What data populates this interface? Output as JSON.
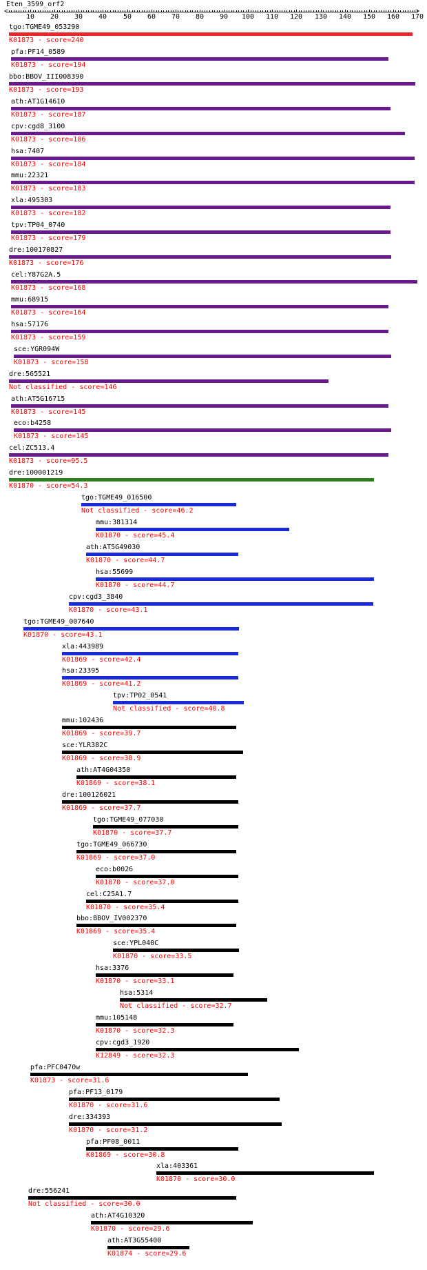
{
  "query": "Eten_3599_orf2",
  "axis": {
    "min": 0,
    "max": 170,
    "tick_labels": [
      "10",
      "20",
      "30",
      "40",
      "50",
      "60",
      "70",
      "80",
      "90",
      "100",
      "110",
      "120",
      "130",
      "140",
      "150",
      "160",
      "170"
    ]
  },
  "colors": {
    "red": "#e8262b",
    "purple": "#6a1a8f",
    "green": "#2e7d1f",
    "blue": "#1b2ad8",
    "black": "#000000"
  },
  "hits": [
    {
      "gene": "tgo:TGME49_053290",
      "label": "K01873 - score=240",
      "start": 1,
      "end": 168,
      "color": "red"
    },
    {
      "gene": "pfa:PF14_0589",
      "label": "K01873 - score=194",
      "start": 2,
      "end": 158,
      "color": "purple"
    },
    {
      "gene": "bbo:BBOV_III008390",
      "label": "K01873 - score=193",
      "start": 1,
      "end": 169,
      "color": "purple"
    },
    {
      "gene": "ath:AT1G14610",
      "label": "K01873 - score=187",
      "start": 2,
      "end": 159,
      "color": "purple"
    },
    {
      "gene": "cpv:cgd8_3100",
      "label": "K01873 - score=186",
      "start": 2,
      "end": 165,
      "color": "purple"
    },
    {
      "gene": "hsa:7407",
      "label": "K01873 - score=184",
      "start": 2,
      "end": 169,
      "color": "purple"
    },
    {
      "gene": "mmu:22321",
      "label": "K01873 - score=183",
      "start": 2,
      "end": 169,
      "color": "purple"
    },
    {
      "gene": "xla:495303",
      "label": "K01873 - score=182",
      "start": 2,
      "end": 159,
      "color": "purple"
    },
    {
      "gene": "tpv:TP04_0740",
      "label": "K01873 - score=179",
      "start": 2,
      "end": 159,
      "color": "purple"
    },
    {
      "gene": "dre:100170827",
      "label": "K01873 - score=176",
      "start": 1,
      "end": 159,
      "color": "purple"
    },
    {
      "gene": "cel:Y87G2A.5",
      "label": "K01873 - score=168",
      "start": 2,
      "end": 170,
      "color": "purple"
    },
    {
      "gene": "mmu:68915",
      "label": "K01873 - score=164",
      "start": 2,
      "end": 158,
      "color": "purple"
    },
    {
      "gene": "hsa:57176",
      "label": "K01873 - score=159",
      "start": 2,
      "end": 158,
      "color": "purple"
    },
    {
      "gene": "sce:YGR094W",
      "label": "K01873 - score=158",
      "start": 3,
      "end": 159,
      "color": "purple"
    },
    {
      "gene": "dre:565521",
      "label": "Not classified - score=146",
      "start": 1,
      "end": 133,
      "color": "purple"
    },
    {
      "gene": "ath:AT5G16715",
      "label": "K01873 - score=145",
      "start": 2,
      "end": 158,
      "color": "purple"
    },
    {
      "gene": "eco:b4258",
      "label": "K01873 - score=145",
      "start": 3,
      "end": 159,
      "color": "purple"
    },
    {
      "gene": "cel:ZC513.4",
      "label": "K01873 - score=95.5",
      "start": 1,
      "end": 158,
      "color": "purple"
    },
    {
      "gene": "dre:100001219",
      "label": "K01870 - score=54.3",
      "start": 1,
      "end": 152,
      "color": "green"
    },
    {
      "gene": "tgo:TGME49_016500",
      "label": "Not classified - score=46.2",
      "start": 31,
      "end": 95,
      "color": "blue"
    },
    {
      "gene": "mmu:381314",
      "label": "K01870 - score=45.4",
      "start": 37,
      "end": 117,
      "color": "blue"
    },
    {
      "gene": "ath:AT5G49030",
      "label": "K01870 - score=44.7",
      "start": 33,
      "end": 96,
      "color": "blue"
    },
    {
      "gene": "hsa:55699",
      "label": "K01870 - score=44.7",
      "start": 37,
      "end": 152,
      "color": "blue"
    },
    {
      "gene": "cpv:cgd3_3840",
      "label": "K01870 - score=43.1",
      "start": 26,
      "end": 152,
      "color": "blue"
    },
    {
      "gene": "tgo:TGME49_007640",
      "label": "K01870 - score=43.1",
      "start": 7,
      "end": 96,
      "color": "blue"
    },
    {
      "gene": "xla:443989",
      "label": "K01869 - score=42.4",
      "start": 23,
      "end": 96,
      "color": "blue"
    },
    {
      "gene": "hsa:23395",
      "label": "K01869 - score=41.2",
      "start": 23,
      "end": 96,
      "color": "blue"
    },
    {
      "gene": "tpv:TP02_0541",
      "label": "Not classified - score=40.8",
      "start": 44,
      "end": 98,
      "color": "blue"
    },
    {
      "gene": "mmu:102436",
      "label": "K01869 - score=39.7",
      "start": 23,
      "end": 95,
      "color": "black"
    },
    {
      "gene": "sce:YLR382C",
      "label": "K01869 - score=38.9",
      "start": 23,
      "end": 98,
      "color": "black"
    },
    {
      "gene": "ath:AT4G04350",
      "label": "K01869 - score=38.1",
      "start": 29,
      "end": 95,
      "color": "black"
    },
    {
      "gene": "dre:100126021",
      "label": "K01869 - score=37.7",
      "start": 23,
      "end": 96,
      "color": "black"
    },
    {
      "gene": "tgo:TGME49_077030",
      "label": "K01870 - score=37.7",
      "start": 36,
      "end": 96,
      "color": "black"
    },
    {
      "gene": "tgo:TGME49_066730",
      "label": "K01869 - score=37.0",
      "start": 29,
      "end": 95,
      "color": "black"
    },
    {
      "gene": "eco:b0026",
      "label": "K01870 - score=37.0",
      "start": 37,
      "end": 96,
      "color": "black"
    },
    {
      "gene": "cel:C25A1.7",
      "label": "K01870 - score=35.4",
      "start": 33,
      "end": 96,
      "color": "black"
    },
    {
      "gene": "bbo:BBOV_IV002370",
      "label": "K01869 - score=35.4",
      "start": 29,
      "end": 95,
      "color": "black"
    },
    {
      "gene": "sce:YPL040C",
      "label": "K01870 - score=33.5",
      "start": 44,
      "end": 96,
      "color": "black"
    },
    {
      "gene": "hsa:3376",
      "label": "K01870 - score=33.1",
      "start": 37,
      "end": 94,
      "color": "black"
    },
    {
      "gene": "hsa:5314",
      "label": "Not classified - score=32.7",
      "start": 47,
      "end": 108,
      "color": "black"
    },
    {
      "gene": "mmu:105148",
      "label": "K01870 - score=32.3",
      "start": 37,
      "end": 94,
      "color": "black"
    },
    {
      "gene": "cpv:cgd3_1920",
      "label": "K12849 - score=32.3",
      "start": 37,
      "end": 121,
      "color": "black"
    },
    {
      "gene": "pfa:PFC0470w",
      "label": "K01873 - score=31.6",
      "start": 10,
      "end": 100,
      "color": "black"
    },
    {
      "gene": "pfa:PF13_0179",
      "label": "K01870 - score=31.6",
      "start": 26,
      "end": 113,
      "color": "black"
    },
    {
      "gene": "dre:334393",
      "label": "K01870 - score=31.2",
      "start": 26,
      "end": 114,
      "color": "black"
    },
    {
      "gene": "pfa:PF08_0011",
      "label": "K01869 - score=30.8",
      "start": 33,
      "end": 96,
      "color": "black"
    },
    {
      "gene": "xla:403361",
      "label": "K01870 - score=30.0",
      "start": 62,
      "end": 152,
      "color": "black"
    },
    {
      "gene": "dre:556241",
      "label": "Not classified - score=30.0",
      "start": 9,
      "end": 95,
      "color": "black"
    },
    {
      "gene": "ath:AT4G10320",
      "label": "K01870 - score=29.6",
      "start": 35,
      "end": 102,
      "color": "black"
    },
    {
      "gene": "ath:AT3G55400",
      "label": "K01874 - score=29.6",
      "start": 42,
      "end": 76,
      "color": "black"
    }
  ]
}
